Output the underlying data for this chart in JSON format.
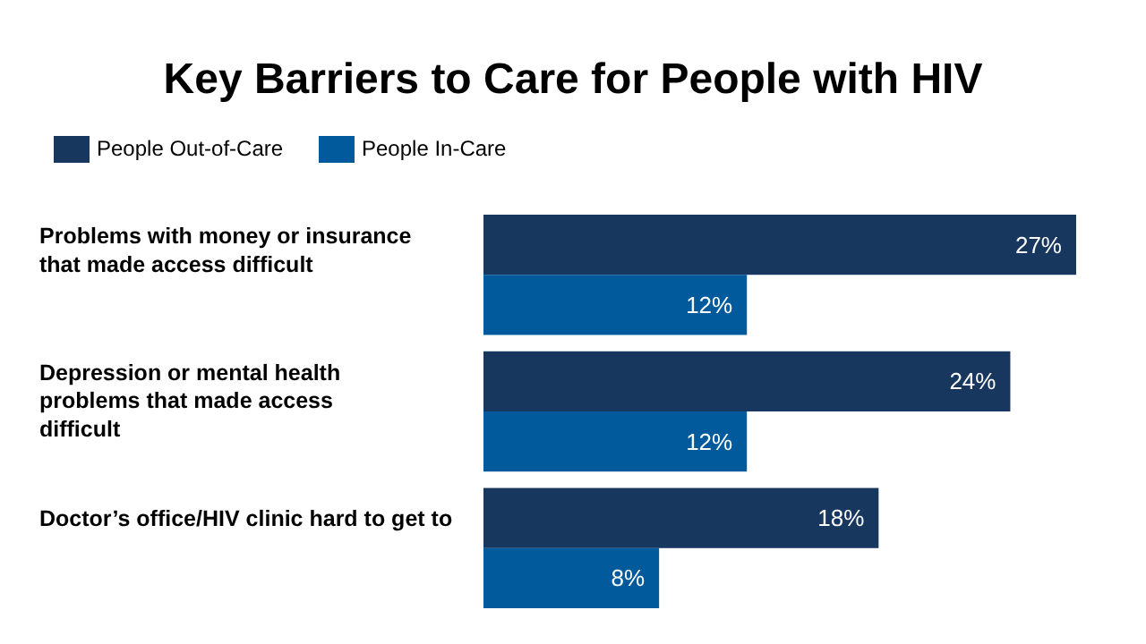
{
  "chart_data": {
    "type": "bar",
    "orientation": "horizontal",
    "title": "Key Barriers to Care for People with HIV",
    "categories": [
      "Problems with money or insurance that made access difficult",
      "Depression or mental health problems that made access difficult",
      "Doctor’s office/HIV clinic hard to get to"
    ],
    "series": [
      {
        "name": "People Out-of-Care",
        "color": "#17375e",
        "values": [
          27,
          24,
          18
        ],
        "value_labels": [
          "27%",
          "24%",
          "18%"
        ]
      },
      {
        "name": "People In-Care",
        "color": "#005a9c",
        "values": [
          12,
          12,
          8
        ],
        "value_labels": [
          "12%",
          "12%",
          "8%"
        ]
      }
    ],
    "legend": "top left"
  }
}
